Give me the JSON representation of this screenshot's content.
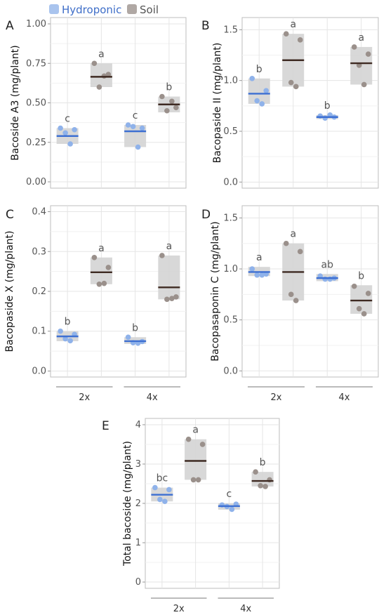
{
  "legend": {
    "items": [
      {
        "label": "Hydroponic",
        "color": "#a9c4ee",
        "text_color": "#3e6ec8"
      },
      {
        "label": "Soil",
        "color": "#b0a8a4",
        "text_color": "#555555"
      }
    ]
  },
  "colors": {
    "hydro_point": "#8fb2ea",
    "hydro_median": "#3d6fd2",
    "soil_point": "#9a908b",
    "soil_median": "#3e2a22",
    "box_fill": "#d4d4d4",
    "grid": "#e5e5e5",
    "frame": "#bdbdbd"
  },
  "chart_data": [
    {
      "panel": "A",
      "type": "box-dot",
      "ylabel": "Bacoside A3 (mg/plant)",
      "ylim": [
        -0.04,
        1.04
      ],
      "yticks": [
        0,
        0.25,
        0.5,
        0.75,
        1.0
      ],
      "ytick_labels": [
        "0.00",
        "0.25",
        "0.50",
        "0.75",
        "1.00"
      ],
      "categories": [
        "2x",
        "4x"
      ],
      "series": [
        {
          "name": "Hydroponic",
          "groups": [
            {
              "points": [
                0.34,
                0.31,
                0.24,
                0.33
              ],
              "box": [
                0.24,
                0.34
              ],
              "median": 0.29,
              "label": "c"
            },
            {
              "points": [
                0.36,
                0.35,
                0.22,
                0.34
              ],
              "box": [
                0.22,
                0.36
              ],
              "median": 0.32,
              "label": "c"
            }
          ]
        },
        {
          "name": "Soil",
          "groups": [
            {
              "points": [
                0.75,
                0.6,
                0.67,
                0.68
              ],
              "box": [
                0.6,
                0.75
              ],
              "median": 0.665,
              "label": "a"
            },
            {
              "points": [
                0.54,
                0.45,
                0.51,
                0.47
              ],
              "box": [
                0.44,
                0.54
              ],
              "median": 0.49,
              "label": "b"
            }
          ]
        }
      ]
    },
    {
      "panel": "B",
      "type": "box-dot",
      "ylabel": "Bacopaside II (mg/plant)",
      "ylim": [
        -0.06,
        1.62
      ],
      "yticks": [
        0,
        0.5,
        1.0,
        1.5
      ],
      "ytick_labels": [
        "0.0",
        "0.5",
        "1.0",
        "1.5"
      ],
      "categories": [
        "2x",
        "4x"
      ],
      "series": [
        {
          "name": "Hydroponic",
          "groups": [
            {
              "points": [
                1.02,
                0.8,
                0.77,
                0.9
              ],
              "box": [
                0.77,
                1.02
              ],
              "median": 0.87,
              "label": "b"
            },
            {
              "points": [
                0.65,
                0.63,
                0.66,
                0.64
              ],
              "box": [
                0.62,
                0.66
              ],
              "median": 0.64,
              "label": "b"
            }
          ]
        },
        {
          "name": "Soil",
          "groups": [
            {
              "points": [
                1.46,
                0.98,
                0.94,
                1.4
              ],
              "box": [
                0.94,
                1.46
              ],
              "median": 1.2,
              "label": "a"
            },
            {
              "points": [
                1.33,
                1.15,
                0.96,
                1.26
              ],
              "box": [
                0.96,
                1.33
              ],
              "median": 1.17,
              "label": "a"
            }
          ]
        }
      ]
    },
    {
      "panel": "C",
      "type": "box-dot",
      "ylabel": "Bacopaside X (mg/plant)",
      "ylim": [
        -0.015,
        0.415
      ],
      "yticks": [
        0,
        0.1,
        0.2,
        0.3,
        0.4
      ],
      "ytick_labels": [
        "0.0",
        "0.1",
        "0.2",
        "0.3",
        "0.4"
      ],
      "categories": [
        "2x",
        "4x"
      ],
      "series": [
        {
          "name": "Hydroponic",
          "groups": [
            {
              "points": [
                0.1,
                0.081,
                0.076,
                0.092
              ],
              "box": [
                0.075,
                0.1
              ],
              "median": 0.087,
              "label": "b"
            },
            {
              "points": [
                0.085,
                0.071,
                0.07,
                0.074
              ],
              "box": [
                0.068,
                0.085
              ],
              "median": 0.075,
              "label": "b"
            }
          ]
        },
        {
          "name": "Soil",
          "groups": [
            {
              "points": [
                0.285,
                0.218,
                0.22,
                0.26
              ],
              "box": [
                0.218,
                0.285
              ],
              "median": 0.248,
              "label": "a"
            },
            {
              "points": [
                0.29,
                0.18,
                0.182,
                0.186
              ],
              "box": [
                0.18,
                0.29
              ],
              "median": 0.21,
              "label": "a"
            }
          ]
        }
      ]
    },
    {
      "panel": "D",
      "type": "box-dot",
      "ylabel": "Bacopasaponin C (mg/plant)",
      "ylim": [
        -0.06,
        1.62
      ],
      "yticks": [
        0,
        0.5,
        1.0,
        1.5
      ],
      "ytick_labels": [
        "0.0",
        "0.5",
        "1.0",
        "1.5"
      ],
      "categories": [
        "2x",
        "4x"
      ],
      "series": [
        {
          "name": "Hydroponic",
          "groups": [
            {
              "points": [
                1.0,
                0.94,
                0.94,
                0.95
              ],
              "box": [
                0.93,
                1.02
              ],
              "median": 0.97,
              "label": "a"
            },
            {
              "points": [
                0.93,
                0.9,
                0.9,
                0.91
              ],
              "box": [
                0.88,
                0.95
              ],
              "median": 0.91,
              "label": "ab"
            }
          ]
        },
        {
          "name": "Soil",
          "groups": [
            {
              "points": [
                1.25,
                0.75,
                0.69,
                1.17
              ],
              "box": [
                0.69,
                1.25
              ],
              "median": 0.97,
              "label": "a"
            },
            {
              "points": [
                0.83,
                0.61,
                0.56,
                0.76
              ],
              "box": [
                0.56,
                0.84
              ],
              "median": 0.69,
              "label": "b"
            }
          ]
        }
      ]
    },
    {
      "panel": "E",
      "type": "box-dot",
      "ylabel": "Total bacoside (mg/plant)",
      "ylim": [
        -0.16,
        4.16
      ],
      "yticks": [
        0,
        1,
        2,
        3,
        4
      ],
      "ytick_labels": [
        "0",
        "1",
        "2",
        "3",
        "4"
      ],
      "categories": [
        "2x",
        "4x"
      ],
      "series": [
        {
          "name": "Hydroponic",
          "groups": [
            {
              "points": [
                2.4,
                2.1,
                2.05,
                2.35
              ],
              "box": [
                2.05,
                2.4
              ],
              "median": 2.22,
              "label": "bc"
            },
            {
              "points": [
                1.96,
                1.92,
                1.85,
                1.98
              ],
              "box": [
                1.84,
                2.0
              ],
              "median": 1.93,
              "label": "c"
            }
          ]
        },
        {
          "name": "Soil",
          "groups": [
            {
              "points": [
                3.63,
                2.6,
                2.6,
                3.5
              ],
              "box": [
                2.6,
                3.63
              ],
              "median": 3.08,
              "label": "a"
            },
            {
              "points": [
                2.8,
                2.45,
                2.43,
                2.6
              ],
              "box": [
                2.43,
                2.8
              ],
              "median": 2.57,
              "label": "b"
            }
          ]
        }
      ]
    }
  ]
}
